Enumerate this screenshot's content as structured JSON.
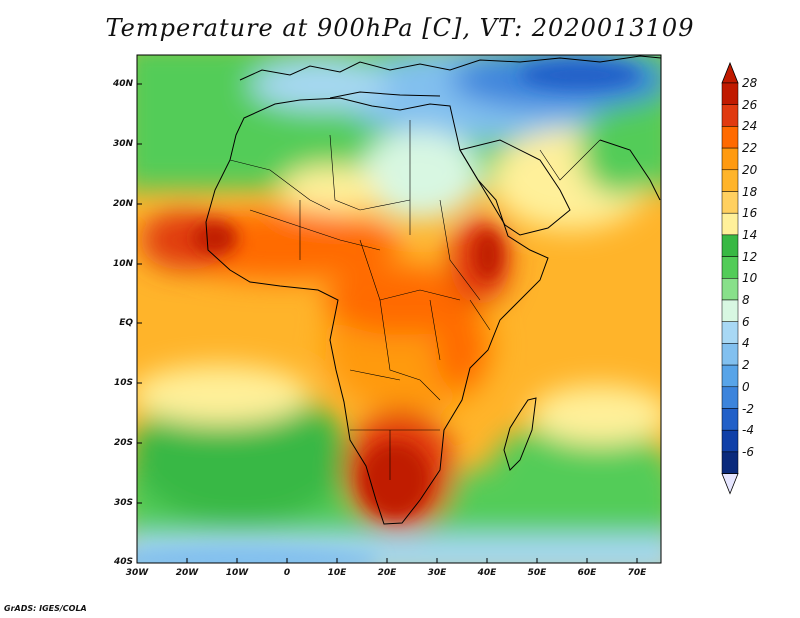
{
  "title": "Temperature at 900hPa [C], VT: 2020013109",
  "credit": "GrADS: IGES/COLA",
  "axes": {
    "lat_labels": [
      "40N",
      "30N",
      "20N",
      "10N",
      "EQ",
      "10S",
      "20S",
      "30S",
      "40S"
    ],
    "lon_labels": [
      "30W",
      "20W",
      "10W",
      "0",
      "10E",
      "20E",
      "30E",
      "40E",
      "50E",
      "60E",
      "70E"
    ]
  },
  "colorbar": {
    "labels": [
      "28",
      "26",
      "24",
      "22",
      "20",
      "18",
      "16",
      "14",
      "12",
      "10",
      "8",
      "6",
      "4",
      "2",
      "0",
      "-2",
      "-4",
      "-6"
    ],
    "colors": [
      "#c01a00",
      "#e03a10",
      "#ff6a00",
      "#ff9a10",
      "#ffb42a",
      "#ffd060",
      "#fff09a",
      "#38b844",
      "#52cc58",
      "#88e08a",
      "#d8f7e2",
      "#a8d8f4",
      "#82c0ef",
      "#58a4e8",
      "#3c84dc",
      "#2260c8",
      "#1040a8",
      "#0a2a7c"
    ],
    "top_arrow_color": "#c01a00",
    "bottom_arrow_color": "#e6e6ff"
  },
  "regions": [
    {
      "name": "mediterranean-cool",
      "color": "#82c0ef"
    },
    {
      "name": "europe-cold",
      "color": "#3c84dc"
    },
    {
      "name": "sahara-mild",
      "color": "#d8f7e2"
    },
    {
      "name": "west-africa-hot",
      "color": "#e03a10"
    },
    {
      "name": "central-africa-warm",
      "color": "#ff9a10"
    },
    {
      "name": "east-africa-hot",
      "color": "#e03a10"
    },
    {
      "name": "southern-africa-hot",
      "color": "#c01a00"
    },
    {
      "name": "south-atlantic-green",
      "color": "#38b844"
    },
    {
      "name": "southern-ocean-cool",
      "color": "#a8d8f4"
    },
    {
      "name": "indian-ocean-warm",
      "color": "#ffb42a"
    }
  ]
}
